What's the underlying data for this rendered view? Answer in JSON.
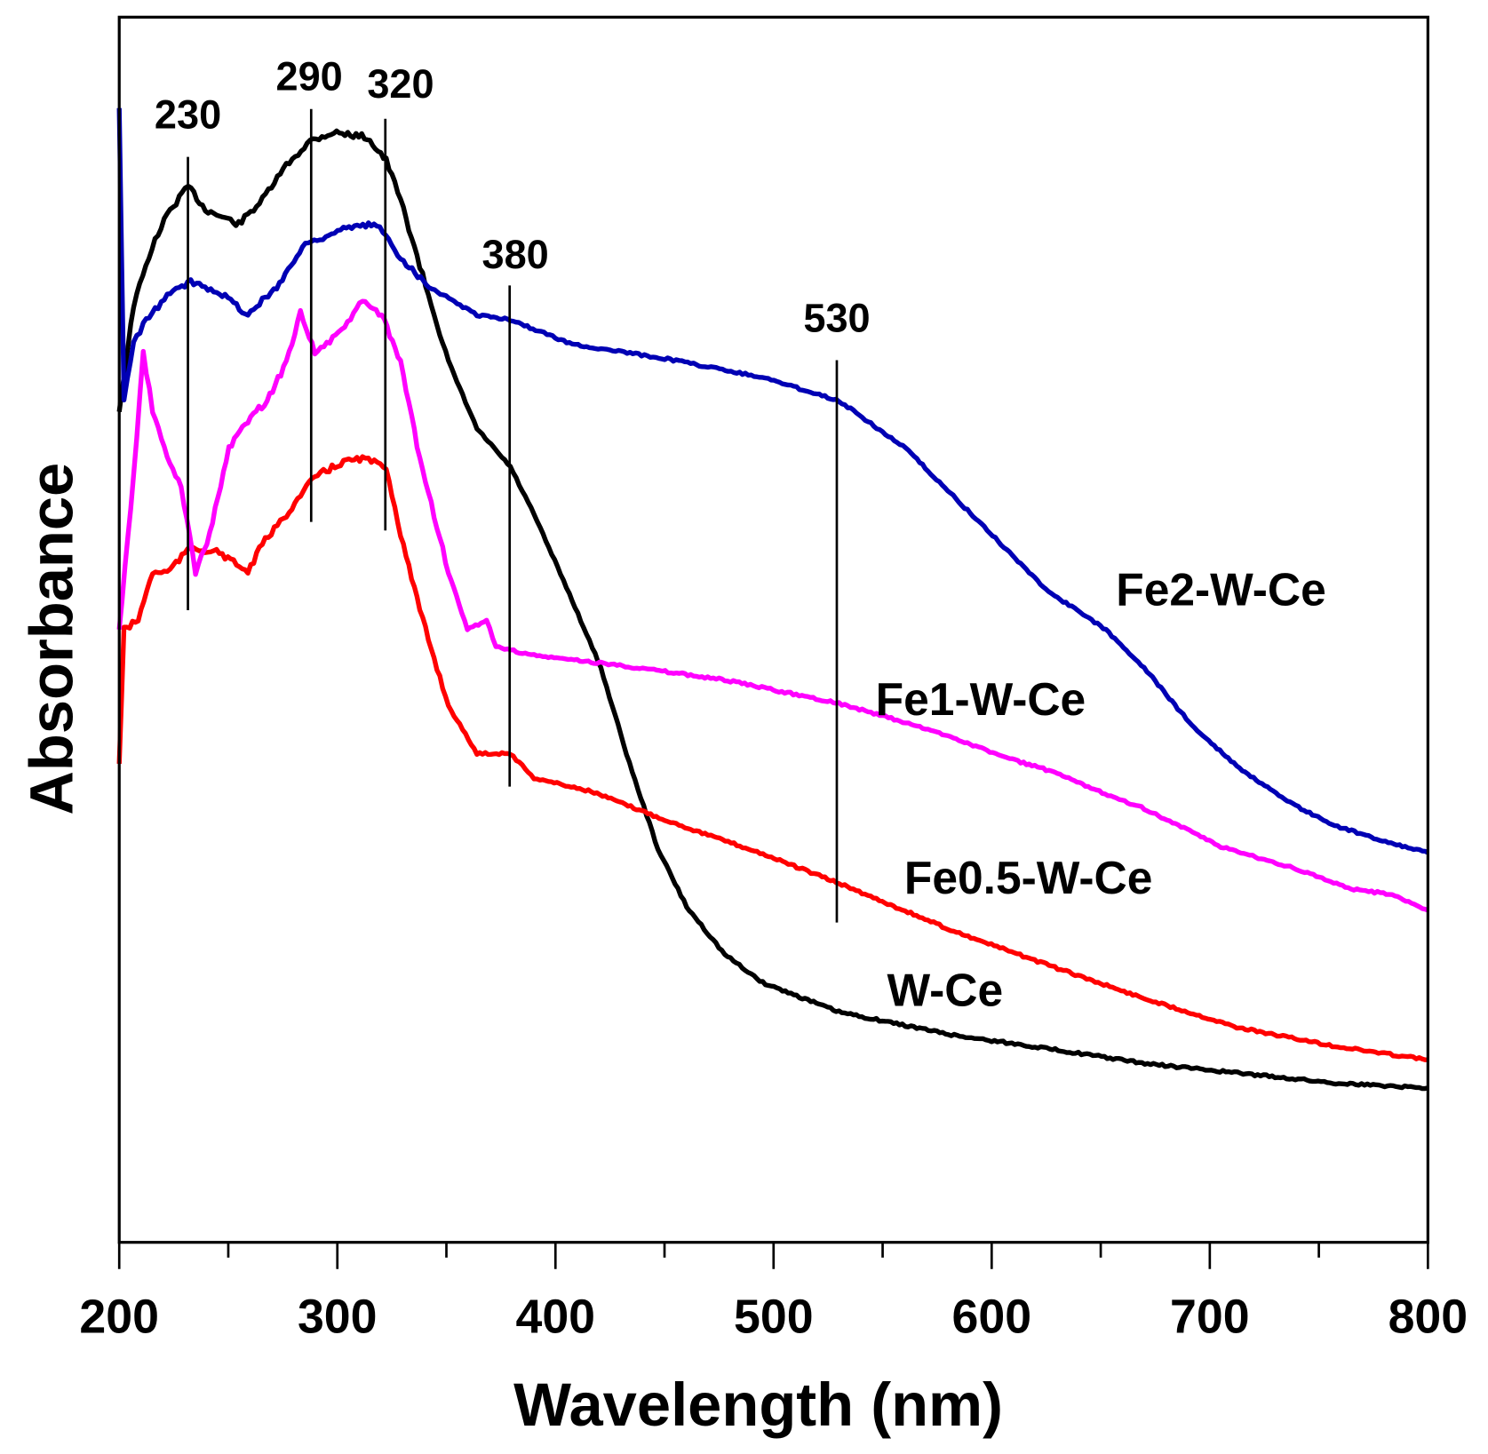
{
  "chart_data": {
    "type": "line",
    "title": "",
    "xlabel": "Wavelength (nm)",
    "ylabel": "Absorbance",
    "xlim": [
      200,
      800
    ],
    "ylim": [
      0,
      100
    ],
    "y_units": "arbitrary (no ticks shown)",
    "x_ticks": [
      200,
      300,
      400,
      500,
      600,
      700,
      800
    ],
    "x_minor_ticks": [
      250,
      350,
      450,
      550,
      650,
      750
    ],
    "grid": false,
    "legend": "inline labels next to curves",
    "series": [
      {
        "name": "W-Ce",
        "color": "#000000",
        "x": [
          200,
          206.6,
          215,
          222,
          231.6,
          239.5,
          254.8,
          265.7,
          276.6,
          287.5,
          298.4,
          313.7,
          322.4,
          329,
          337.8,
          350.9,
          364,
          379.3,
          390.2,
          407.7,
          420.8,
          433.9,
          447,
          460.1,
          477.6,
          495,
          530,
          582.8,
          626.5,
          670.2,
          714,
          757.7,
          800
        ],
        "y": [
          67.9,
          76.5,
          81.2,
          83.9,
          86.2,
          84.3,
          83.1,
          85.1,
          87.9,
          89.9,
          90.6,
          90.2,
          88.3,
          85.1,
          79.7,
          71.9,
          66.4,
          63.3,
          59.4,
          52.4,
          46.9,
          39.1,
          32.1,
          27.4,
          23.5,
          21.2,
          18.8,
          16.9,
          15.8,
          14.6,
          13.8,
          13.0,
          12.6
        ]
      },
      {
        "name": "Fe0.5-W-Ce",
        "color": "#ff0000",
        "x": [
          200,
          202.2,
          208.7,
          215.3,
          222,
          232.8,
          245.9,
          259,
          265.6,
          276.6,
          289.7,
          302.8,
          311.5,
          322.4,
          329,
          337.8,
          350.9,
          364,
          379.3,
          390.2,
          416.4,
          451.4,
          495.1,
          530,
          582.6,
          626.3,
          670,
          713.7,
          757.4,
          800
        ],
        "y": [
          39.1,
          50.0,
          50.8,
          54.7,
          54.7,
          56.7,
          56.3,
          54.7,
          57.0,
          59.4,
          62.5,
          63.7,
          64.0,
          63.3,
          57.8,
          51.6,
          43.8,
          39.9,
          39.9,
          37.9,
          36.8,
          34.4,
          31.7,
          29.3,
          25.4,
          22.6,
          19.9,
          17.5,
          16.0,
          14.9
        ]
      },
      {
        "name": "Fe1-W-Ce",
        "color": "#ff00ff",
        "x": [
          200,
          206.6,
          211,
          215.3,
          222,
          228.4,
          235,
          241.5,
          250.3,
          259,
          267.8,
          276.6,
          283.1,
          289.7,
          300.6,
          311.5,
          320.3,
          329,
          337.8,
          350.9,
          359.6,
          368.4,
          372.7,
          390.2,
          429.5,
          477.6,
          530,
          560.6,
          582.4,
          604.3,
          626.2,
          648.1,
          670,
          705,
          735.5,
          766.1,
          783.6,
          800
        ],
        "y": [
          50.0,
          62.5,
          72.6,
          67.9,
          64.0,
          61.7,
          54.7,
          57.8,
          64.8,
          67.1,
          68.7,
          71.8,
          76.0,
          72.6,
          74.1,
          76.8,
          75.7,
          71.8,
          64.0,
          54.7,
          50.0,
          50.8,
          48.6,
          47.9,
          47.1,
          45.9,
          44.0,
          42.4,
          41.2,
          39.7,
          38.5,
          36.9,
          35.4,
          32.3,
          30.7,
          28.8,
          28.4,
          27.1
        ]
      },
      {
        "name": "Fe2-W-Ce",
        "color": "#0000b4",
        "x": [
          200,
          202.2,
          206.6,
          211,
          222,
          232.8,
          245.9,
          259,
          272.2,
          285.3,
          302.8,
          318.1,
          329,
          342.1,
          364,
          379.3,
          407.7,
          451.4,
          495,
          530,
          560.6,
          582.4,
          604.3,
          626.2,
          652.4,
          669.9,
          691.7,
          713.6,
          735.5,
          757.3,
          779.2,
          800
        ],
        "y": [
          92.5,
          68.7,
          73.4,
          74.9,
          77.3,
          78.4,
          77.6,
          75.7,
          78.0,
          81.5,
          82.7,
          83.1,
          80.4,
          78.0,
          75.7,
          75.3,
          73.3,
          72.1,
          70.6,
          68.7,
          64.8,
          60.9,
          57.0,
          53.1,
          50.0,
          46.9,
          42.2,
          38.7,
          36.0,
          34.0,
          32.8,
          31.8
        ]
      }
    ],
    "annotations": [
      {
        "label": "230",
        "x": 231.5,
        "y_range": [
          51.6,
          88.6
        ]
      },
      {
        "label": "290",
        "x": 288,
        "y_range": [
          58.8,
          92.5
        ]
      },
      {
        "label": "320",
        "x": 322,
        "y_range": [
          58.1,
          91.7
        ]
      },
      {
        "label": "380",
        "x": 379,
        "y_range": [
          37.2,
          78.1
        ]
      },
      {
        "label": "530",
        "x": 529,
        "y_range": [
          26.1,
          72.0
        ]
      }
    ]
  }
}
